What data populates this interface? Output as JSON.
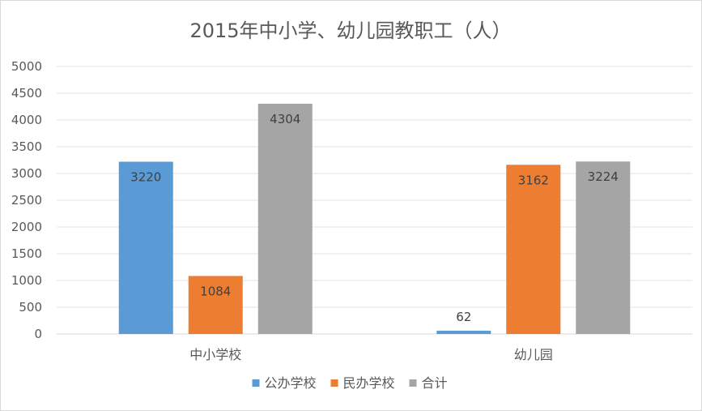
{
  "chart_data": {
    "type": "bar",
    "title": "2015年中小学、幼儿园教职工（人）",
    "categories": [
      "中小学校",
      "幼儿园"
    ],
    "series": [
      {
        "name": "公办学校",
        "color": "#5b9bd5",
        "values": [
          3220,
          62
        ]
      },
      {
        "name": "民办学校",
        "color": "#ed7d31",
        "values": [
          1084,
          3162
        ]
      },
      {
        "name": "合计",
        "color": "#a5a5a5",
        "values": [
          4304,
          3224
        ]
      }
    ],
    "ylim": [
      0,
      5000
    ],
    "yticks": [
      0,
      500,
      1000,
      1500,
      2000,
      2500,
      3000,
      3500,
      4000,
      4500,
      5000
    ],
    "grid": true,
    "legend": "bottom",
    "data_labels": true,
    "xlabel": "",
    "ylabel": ""
  }
}
